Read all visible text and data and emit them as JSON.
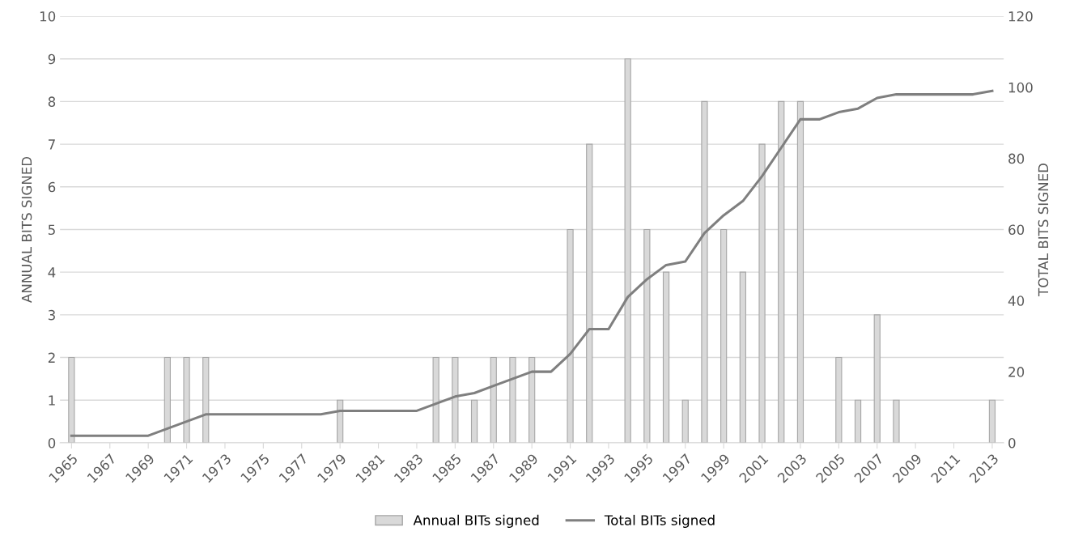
{
  "chart_data": {
    "type": "bar",
    "ylabel": "ANNUAL BITS SIGNED",
    "y2label": "TOTAL BITS SIGNED",
    "categories": [
      "1965",
      null,
      "1967",
      null,
      "1969",
      null,
      "1971",
      null,
      "1973",
      null,
      "1975",
      null,
      "1977",
      null,
      "1979",
      null,
      "1981",
      null,
      "1983",
      null,
      "1985",
      null,
      "1987",
      null,
      "1989",
      null,
      "1991",
      null,
      "1993",
      null,
      "1995",
      null,
      "1997",
      null,
      "1999",
      null,
      "2001",
      null,
      "2003",
      null,
      "2005",
      null,
      "2007",
      null,
      "2009",
      null,
      "2011",
      null,
      "2013"
    ],
    "series": [
      {
        "name": "Annual BITs signed",
        "color": "#d9d9d9",
        "values": [
          2,
          0,
          0,
          0,
          0,
          2,
          2,
          2,
          0,
          0,
          0,
          0,
          0,
          0,
          1,
          0,
          0,
          0,
          0,
          2,
          2,
          1,
          2,
          2,
          2,
          0,
          5,
          7,
          0,
          9,
          5,
          4,
          1,
          8,
          5,
          4,
          7,
          8,
          8,
          0,
          2,
          1,
          3,
          1,
          0,
          0,
          0,
          0,
          1
        ]
      },
      {
        "name": "Total BITs signed",
        "type": "line",
        "axis": "y2",
        "color": "#7f7f7f",
        "values": [
          2,
          2,
          2,
          2,
          2,
          4,
          6,
          8,
          8,
          8,
          8,
          8,
          8,
          8,
          9,
          9,
          9,
          9,
          9,
          11,
          13,
          14,
          16,
          18,
          20,
          20,
          25,
          32,
          32,
          41,
          46,
          50,
          51,
          59,
          64,
          68,
          75,
          83,
          91,
          91,
          93,
          94,
          97,
          98,
          98,
          98,
          98,
          98,
          99
        ]
      }
    ],
    "ylim": [
      0,
      10
    ],
    "yticks": [
      0,
      1,
      2,
      3,
      4,
      5,
      6,
      7,
      8,
      9,
      10
    ],
    "y2lim": [
      0,
      120
    ],
    "y2ticks": [
      0,
      20,
      40,
      60,
      80,
      100,
      120
    ],
    "grid": "y",
    "legend": "bottom"
  }
}
